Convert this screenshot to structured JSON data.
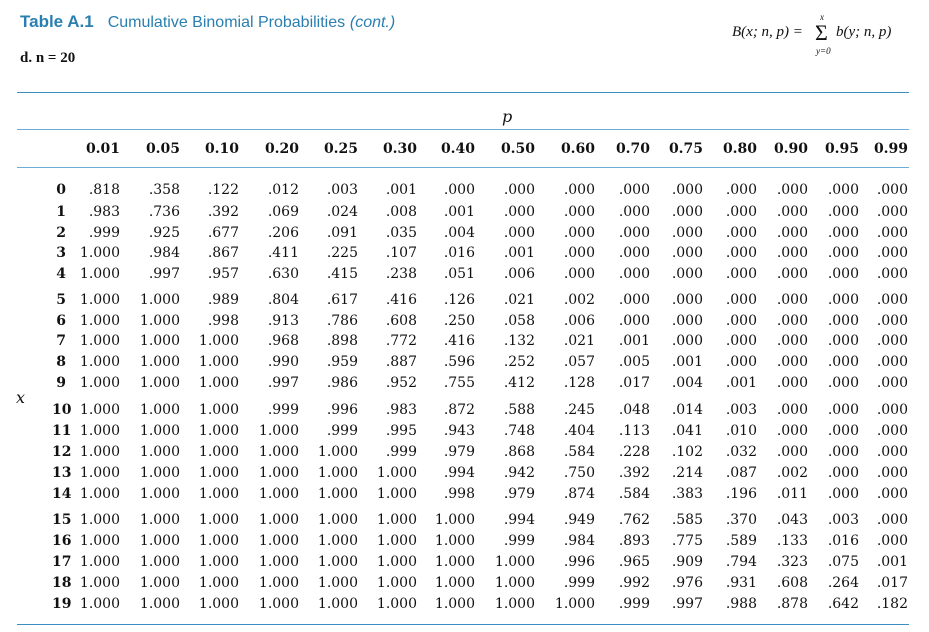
{
  "table_label": "Table A.1",
  "table_name": "Cumulative Binomial Probabilities",
  "table_cont": "(cont.)",
  "subtitle": "d.  n = 20",
  "formula": {
    "lhs": "B(x; n, p) =",
    "sum_symbol": "Σ",
    "sum_upper": "x",
    "sum_lower": "y=0",
    "rhs": "b(y; n, p)"
  },
  "p_label": "p",
  "x_label": "x",
  "columns": [
    "0.01",
    "0.05",
    "0.10",
    "0.20",
    "0.25",
    "0.30",
    "0.40",
    "0.50",
    "0.60",
    "0.70",
    "0.75",
    "0.80",
    "0.90",
    "0.95",
    "0.99"
  ],
  "rows": [
    {
      "x": "0",
      "v": [
        ".818",
        ".358",
        ".122",
        ".012",
        ".003",
        ".001",
        ".000",
        ".000",
        ".000",
        ".000",
        ".000",
        ".000",
        ".000",
        ".000",
        ".000"
      ]
    },
    {
      "x": "1",
      "v": [
        ".983",
        ".736",
        ".392",
        ".069",
        ".024",
        ".008",
        ".001",
        ".000",
        ".000",
        ".000",
        ".000",
        ".000",
        ".000",
        ".000",
        ".000"
      ]
    },
    {
      "x": "2",
      "v": [
        ".999",
        ".925",
        ".677",
        ".206",
        ".091",
        ".035",
        ".004",
        ".000",
        ".000",
        ".000",
        ".000",
        ".000",
        ".000",
        ".000",
        ".000"
      ]
    },
    {
      "x": "3",
      "v": [
        "1.000",
        ".984",
        ".867",
        ".411",
        ".225",
        ".107",
        ".016",
        ".001",
        ".000",
        ".000",
        ".000",
        ".000",
        ".000",
        ".000",
        ".000"
      ]
    },
    {
      "x": "4",
      "v": [
        "1.000",
        ".997",
        ".957",
        ".630",
        ".415",
        ".238",
        ".051",
        ".006",
        ".000",
        ".000",
        ".000",
        ".000",
        ".000",
        ".000",
        ".000"
      ]
    },
    {
      "x": "5",
      "v": [
        "1.000",
        "1.000",
        ".989",
        ".804",
        ".617",
        ".416",
        ".126",
        ".021",
        ".002",
        ".000",
        ".000",
        ".000",
        ".000",
        ".000",
        ".000"
      ]
    },
    {
      "x": "6",
      "v": [
        "1.000",
        "1.000",
        ".998",
        ".913",
        ".786",
        ".608",
        ".250",
        ".058",
        ".006",
        ".000",
        ".000",
        ".000",
        ".000",
        ".000",
        ".000"
      ]
    },
    {
      "x": "7",
      "v": [
        "1.000",
        "1.000",
        "1.000",
        ".968",
        ".898",
        ".772",
        ".416",
        ".132",
        ".021",
        ".001",
        ".000",
        ".000",
        ".000",
        ".000",
        ".000"
      ]
    },
    {
      "x": "8",
      "v": [
        "1.000",
        "1.000",
        "1.000",
        ".990",
        ".959",
        ".887",
        ".596",
        ".252",
        ".057",
        ".005",
        ".001",
        ".000",
        ".000",
        ".000",
        ".000"
      ]
    },
    {
      "x": "9",
      "v": [
        "1.000",
        "1.000",
        "1.000",
        ".997",
        ".986",
        ".952",
        ".755",
        ".412",
        ".128",
        ".017",
        ".004",
        ".001",
        ".000",
        ".000",
        ".000"
      ]
    },
    {
      "x": "10",
      "v": [
        "1.000",
        "1.000",
        "1.000",
        ".999",
        ".996",
        ".983",
        ".872",
        ".588",
        ".245",
        ".048",
        ".014",
        ".003",
        ".000",
        ".000",
        ".000"
      ]
    },
    {
      "x": "11",
      "v": [
        "1.000",
        "1.000",
        "1.000",
        "1.000",
        ".999",
        ".995",
        ".943",
        ".748",
        ".404",
        ".113",
        ".041",
        ".010",
        ".000",
        ".000",
        ".000"
      ]
    },
    {
      "x": "12",
      "v": [
        "1.000",
        "1.000",
        "1.000",
        "1.000",
        "1.000",
        ".999",
        ".979",
        ".868",
        ".584",
        ".228",
        ".102",
        ".032",
        ".000",
        ".000",
        ".000"
      ]
    },
    {
      "x": "13",
      "v": [
        "1.000",
        "1.000",
        "1.000",
        "1.000",
        "1.000",
        "1.000",
        ".994",
        ".942",
        ".750",
        ".392",
        ".214",
        ".087",
        ".002",
        ".000",
        ".000"
      ]
    },
    {
      "x": "14",
      "v": [
        "1.000",
        "1.000",
        "1.000",
        "1.000",
        "1.000",
        "1.000",
        ".998",
        ".979",
        ".874",
        ".584",
        ".383",
        ".196",
        ".011",
        ".000",
        ".000"
      ]
    },
    {
      "x": "15",
      "v": [
        "1.000",
        "1.000",
        "1.000",
        "1.000",
        "1.000",
        "1.000",
        "1.000",
        ".994",
        ".949",
        ".762",
        ".585",
        ".370",
        ".043",
        ".003",
        ".000"
      ]
    },
    {
      "x": "16",
      "v": [
        "1.000",
        "1.000",
        "1.000",
        "1.000",
        "1.000",
        "1.000",
        "1.000",
        ".999",
        ".984",
        ".893",
        ".775",
        ".589",
        ".133",
        ".016",
        ".000"
      ]
    },
    {
      "x": "17",
      "v": [
        "1.000",
        "1.000",
        "1.000",
        "1.000",
        "1.000",
        "1.000",
        "1.000",
        "1.000",
        ".996",
        ".965",
        ".909",
        ".794",
        ".323",
        ".075",
        ".001"
      ]
    },
    {
      "x": "18",
      "v": [
        "1.000",
        "1.000",
        "1.000",
        "1.000",
        "1.000",
        "1.000",
        "1.000",
        "1.000",
        ".999",
        ".992",
        ".976",
        ".931",
        ".608",
        ".264",
        ".017"
      ]
    },
    {
      "x": "19",
      "v": [
        "1.000",
        "1.000",
        "1.000",
        "1.000",
        "1.000",
        "1.000",
        "1.000",
        "1.000",
        "1.000",
        ".999",
        ".997",
        ".988",
        ".878",
        ".642",
        ".182"
      ]
    }
  ]
}
